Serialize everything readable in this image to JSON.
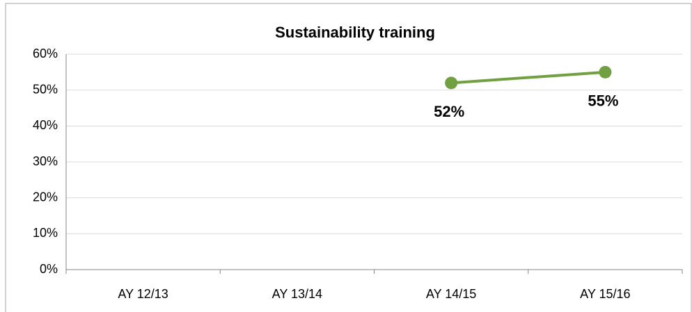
{
  "chart_data": {
    "type": "line",
    "title": "Sustainability training",
    "categories": [
      "AY 12/13",
      "AY 13/14",
      "AY 14/15",
      "AY 15/16"
    ],
    "values": [
      null,
      null,
      52,
      55
    ],
    "value_labels": [
      null,
      null,
      "52%",
      "55%"
    ],
    "color": "#70a040",
    "ylim": [
      0,
      60
    ],
    "yticks": [
      {
        "value": 0,
        "label": "0%"
      },
      {
        "value": 10,
        "label": "10%"
      },
      {
        "value": 20,
        "label": "20%"
      },
      {
        "value": 30,
        "label": "30%"
      },
      {
        "value": 40,
        "label": "40%"
      },
      {
        "value": 50,
        "label": "50%"
      },
      {
        "value": 60,
        "label": "60%"
      }
    ],
    "grid": true
  }
}
